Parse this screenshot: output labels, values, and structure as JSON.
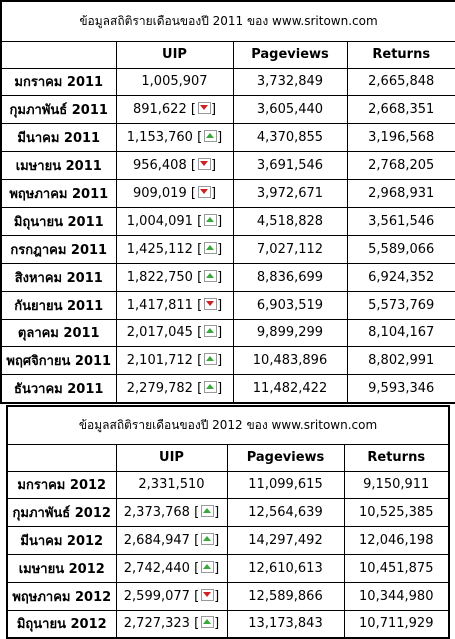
{
  "table2011": {
    "caption": "ข้อมูลสถิติรายเดือนของปี 2011 ของ www.sritown.com",
    "headers": [
      "",
      "UIP",
      "Pageviews",
      "Returns"
    ],
    "rows": [
      {
        "month": "มกราคม 2011",
        "uip": "1,005,907",
        "trend": "none",
        "pageviews": "3,732,849",
        "returns": "2,665,848"
      },
      {
        "month": "กุมภาพันธ์ 2011",
        "uip": "891,622",
        "trend": "down",
        "pageviews": "3,605,440",
        "returns": "2,668,351"
      },
      {
        "month": "มีนาคม 2011",
        "uip": "1,153,760",
        "trend": "up",
        "pageviews": "4,370,855",
        "returns": "3,196,568"
      },
      {
        "month": "เมษายน 2011",
        "uip": "956,408",
        "trend": "down",
        "pageviews": "3,691,546",
        "returns": "2,768,205"
      },
      {
        "month": "พฤษภาคม 2011",
        "uip": "909,019",
        "trend": "down",
        "pageviews": "3,972,671",
        "returns": "2,968,931"
      },
      {
        "month": "มิถุนายน 2011",
        "uip": "1,004,091",
        "trend": "up",
        "pageviews": "4,518,828",
        "returns": "3,561,546"
      },
      {
        "month": "กรกฎาคม 2011",
        "uip": "1,425,112",
        "trend": "up",
        "pageviews": "7,027,112",
        "returns": "5,589,066"
      },
      {
        "month": "สิงหาคม 2011",
        "uip": "1,822,750",
        "trend": "up",
        "pageviews": "8,836,699",
        "returns": "6,924,352"
      },
      {
        "month": "กันยายน 2011",
        "uip": "1,417,811",
        "trend": "down",
        "pageviews": "6,903,519",
        "returns": "5,573,769"
      },
      {
        "month": "ตุลาคม 2011",
        "uip": "2,017,045",
        "trend": "up",
        "pageviews": "9,899,299",
        "returns": "8,104,167"
      },
      {
        "month": "พฤศจิกายน 2011",
        "uip": "2,101,712",
        "trend": "up",
        "pageviews": "10,483,896",
        "returns": "8,802,991"
      },
      {
        "month": "ธันวาคม 2011",
        "uip": "2,279,782",
        "trend": "up",
        "pageviews": "11,482,422",
        "returns": "9,593,346"
      }
    ]
  },
  "table2012": {
    "caption": "ข้อมูลสถิติรายเดือนของปี 2012 ของ www.sritown.com",
    "headers": [
      "",
      "UIP",
      "Pageviews",
      "Returns"
    ],
    "rows": [
      {
        "month": "มกราคม 2012",
        "uip": "2,331,510",
        "trend": "none",
        "pageviews": "11,099,615",
        "returns": "9,150,911"
      },
      {
        "month": "กุมภาพันธ์ 2012",
        "uip": "2,373,768",
        "trend": "up",
        "pageviews": "12,564,639",
        "returns": "10,525,385"
      },
      {
        "month": "มีนาคม 2012",
        "uip": "2,684,947",
        "trend": "up",
        "pageviews": "14,297,492",
        "returns": "12,046,198"
      },
      {
        "month": "เมษายน 2012",
        "uip": "2,742,440",
        "trend": "up",
        "pageviews": "12,610,613",
        "returns": "10,451,875"
      },
      {
        "month": "พฤษภาคม 2012",
        "uip": "2,599,077",
        "trend": "down",
        "pageviews": "12,589,866",
        "returns": "10,344,980"
      },
      {
        "month": "มิถุนายน 2012",
        "uip": "2,727,323",
        "trend": "up",
        "pageviews": "13,173,843",
        "returns": "10,711,929"
      }
    ]
  },
  "icons": {
    "up": "trend-up-icon",
    "down": "trend-down-icon"
  },
  "colors": {
    "up": "#3aa83a",
    "down": "#cc2222",
    "border": "#000000"
  }
}
